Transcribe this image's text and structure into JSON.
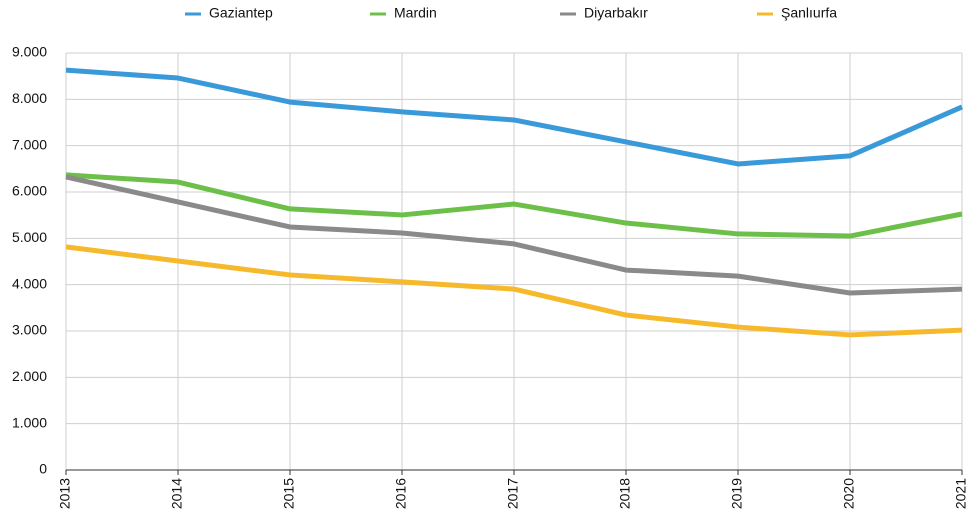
{
  "chart_data": {
    "type": "line",
    "categories": [
      "2013",
      "2014",
      "2015",
      "2016",
      "2017",
      "2018",
      "2019",
      "2020",
      "2021"
    ],
    "series": [
      {
        "name": "Gaziantep",
        "color": "#3a9ad9",
        "values": [
          8630,
          8460,
          7940,
          7730,
          7555,
          7080,
          6605,
          6780,
          7835
        ]
      },
      {
        "name": "Mardin",
        "color": "#6cc04a",
        "values": [
          6370,
          6215,
          5635,
          5505,
          5740,
          5330,
          5095,
          5050,
          5525
        ]
      },
      {
        "name": "Diyarbakır",
        "color": "#8a8a8a",
        "values": [
          6325,
          5785,
          5245,
          5115,
          4880,
          4315,
          4185,
          3820,
          3905
        ]
      },
      {
        "name": "Şanlıurfa",
        "color": "#f6b92b",
        "values": [
          4815,
          4510,
          4210,
          4060,
          3905,
          3345,
          3085,
          2915,
          3020
        ]
      }
    ],
    "ylim": [
      0,
      9000
    ],
    "yticks": [
      0,
      {
        "value": 1000,
        "label": "1.000"
      },
      {
        "value": 2000,
        "label": "2.000"
      },
      {
        "value": 3000,
        "label": "3.000"
      },
      {
        "value": 4000,
        "label": "4.000"
      },
      {
        "value": 5000,
        "label": "5.000"
      },
      {
        "value": 6000,
        "label": "6.000"
      },
      {
        "value": 7000,
        "label": "7.000"
      },
      {
        "value": 8000,
        "label": "8.000"
      },
      {
        "value": 9000,
        "label": "9.000"
      }
    ],
    "grid": true,
    "legend": "top"
  }
}
